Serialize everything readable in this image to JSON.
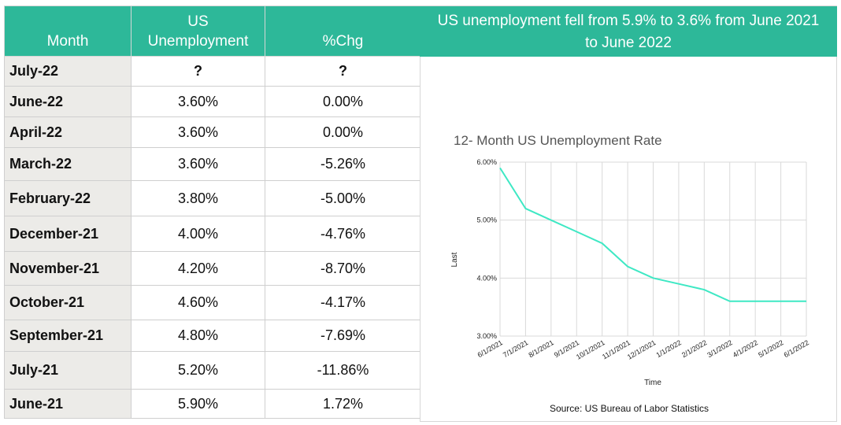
{
  "table": {
    "headers": {
      "month_label": "Month",
      "unemp_line1": "US",
      "unemp_line2": "Unemployment",
      "chg_label": "%Chg"
    },
    "rows": [
      {
        "month": "July-22",
        "rate": "?",
        "chg": "?"
      },
      {
        "month": "June-22",
        "rate": "3.60%",
        "chg": "0.00%"
      },
      {
        "month": "April-22",
        "rate": "3.60%",
        "chg": "0.00%"
      },
      {
        "month": "March-22",
        "rate": "3.60%",
        "chg": "-5.26%"
      },
      {
        "month": "February-22",
        "rate": "3.80%",
        "chg": "-5.00%"
      },
      {
        "month": "December-21",
        "rate": "4.00%",
        "chg": "-4.76%"
      },
      {
        "month": "November-21",
        "rate": "4.20%",
        "chg": "-8.70%"
      },
      {
        "month": "October-21",
        "rate": "4.60%",
        "chg": "-4.17%"
      },
      {
        "month": "September-21",
        "rate": "4.80%",
        "chg": "-7.69%"
      },
      {
        "month": "July-21",
        "rate": "5.20%",
        "chg": "-11.86%"
      },
      {
        "month": "June-21",
        "rate": "5.90%",
        "chg": "1.72%"
      }
    ]
  },
  "panel": {
    "header_line1": "US unemployment fell from 5.9% to 3.6% from June 2021",
    "header_line2": "to June 2022",
    "source": "Source: US Bureau of Labor Statistics"
  },
  "chart_data": {
    "type": "line",
    "title": "12- Month US Unemployment Rate",
    "xlabel": "Time",
    "ylabel": "Last",
    "x": [
      "6/1/2021",
      "7/1/2021",
      "8/1/2021",
      "9/1/2021",
      "10/1/2021",
      "11/1/2021",
      "12/1/2021",
      "1/1/2022",
      "2/1/2022",
      "3/1/2022",
      "4/1/2022",
      "5/1/2022",
      "6/1/2022"
    ],
    "values": [
      5.9,
      5.2,
      5.0,
      4.8,
      4.6,
      4.2,
      4.0,
      3.9,
      3.8,
      3.6,
      3.6,
      3.6,
      3.6
    ],
    "ylim": [
      3.0,
      6.0
    ],
    "yticks": [
      "3.00%",
      "4.00%",
      "5.00%",
      "6.00%"
    ],
    "line_color": "#3ee8c4",
    "grid": true,
    "legend": "none"
  },
  "colors": {
    "header_bg": "#2db899",
    "month_col_bg": "#ecebe8"
  }
}
